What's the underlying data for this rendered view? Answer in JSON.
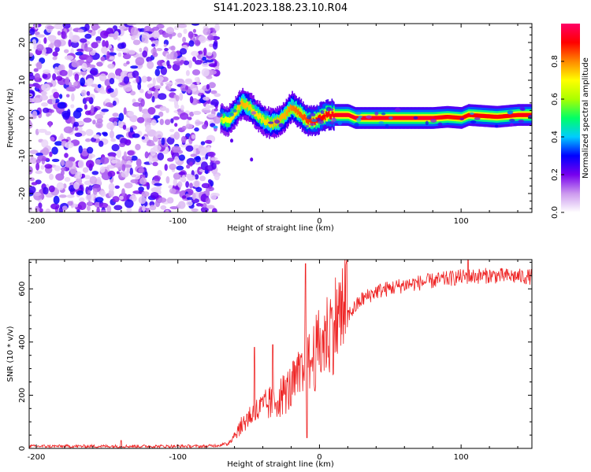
{
  "title": "S141.2023.188.23.10.R04",
  "chart_data": [
    {
      "type": "heatmap",
      "name": "spectrogram",
      "xlabel": "Height of straight line (km)",
      "ylabel": "Frequency (Hz)",
      "xlim": [
        -205,
        150
      ],
      "ylim": [
        -25,
        25
      ],
      "xticks": [
        -200,
        -100,
        0,
        100
      ],
      "xtick_labels": [
        "-200",
        "-100",
        "0",
        "100"
      ],
      "yticks": [
        -20,
        -10,
        0,
        10,
        20
      ],
      "ytick_labels": [
        "-20",
        "-10",
        "0",
        "10",
        "20"
      ],
      "noise_region_x": [
        -205,
        -72
      ],
      "signal_track": [
        {
          "x": -70,
          "f": 0.0,
          "amp": 0.35
        },
        {
          "x": -65,
          "f": -1.0,
          "amp": 0.45
        },
        {
          "x": -60,
          "f": 1.5,
          "amp": 0.5
        },
        {
          "x": -55,
          "f": 4.0,
          "amp": 0.6
        },
        {
          "x": -50,
          "f": 3.0,
          "amp": 0.55
        },
        {
          "x": -45,
          "f": 1.0,
          "amp": 0.5
        },
        {
          "x": -40,
          "f": -0.5,
          "amp": 0.5
        },
        {
          "x": -35,
          "f": -1.5,
          "amp": 0.55
        },
        {
          "x": -30,
          "f": -1.0,
          "amp": 0.6
        },
        {
          "x": -25,
          "f": 0.5,
          "amp": 0.6
        },
        {
          "x": -20,
          "f": 3.0,
          "amp": 0.7
        },
        {
          "x": -15,
          "f": 1.5,
          "amp": 0.75
        },
        {
          "x": -10,
          "f": -0.5,
          "amp": 0.8
        },
        {
          "x": -5,
          "f": -1.0,
          "amp": 0.85
        },
        {
          "x": 0,
          "f": 0.0,
          "amp": 0.9
        },
        {
          "x": 5,
          "f": 0.8,
          "amp": 0.95
        },
        {
          "x": 20,
          "f": 0.8,
          "amp": 1.0
        },
        {
          "x": 25,
          "f": 0.0,
          "amp": 1.0
        },
        {
          "x": 45,
          "f": 0.0,
          "amp": 1.0
        },
        {
          "x": 55,
          "f": 0.0,
          "amp": 1.0
        },
        {
          "x": 80,
          "f": 0.0,
          "amp": 1.0
        },
        {
          "x": 90,
          "f": 0.3,
          "amp": 0.9
        },
        {
          "x": 100,
          "f": 0.0,
          "amp": 0.9
        },
        {
          "x": 105,
          "f": 0.8,
          "amp": 0.95
        },
        {
          "x": 125,
          "f": 0.3,
          "amp": 0.9
        },
        {
          "x": 140,
          "f": 0.8,
          "amp": 0.95
        },
        {
          "x": 150,
          "f": 0.8,
          "amp": 0.95
        }
      ],
      "colorbar": {
        "label": "Normalized spectral amplitude",
        "range": [
          0,
          1
        ],
        "ticks": [
          0.0,
          0.2,
          0.4,
          0.6,
          0.8
        ],
        "tick_labels": [
          "0.0",
          "0.2",
          "0.4",
          "0.6",
          "0.8"
        ],
        "colors": [
          "#ffffff",
          "#cc99ee",
          "#7700ee",
          "#0000ff",
          "#00ccff",
          "#00ff66",
          "#aaff00",
          "#ffff00",
          "#ff8800",
          "#ff0000",
          "#ff0066"
        ]
      }
    },
    {
      "type": "line",
      "name": "snr",
      "xlabel": "Height of straight line (km)",
      "ylabel": "SNR (10 * v/v)",
      "xlim": [
        -205,
        150
      ],
      "ylim": [
        0,
        710
      ],
      "xticks": [
        -200,
        -100,
        0,
        100
      ],
      "xtick_labels": [
        "-200",
        "-100",
        "0",
        "100"
      ],
      "yticks": [
        0,
        200,
        400,
        600
      ],
      "ytick_labels": [
        "0",
        "200",
        "400",
        "600"
      ],
      "color": "#ee2222",
      "envelope": [
        {
          "x": -205,
          "y": 8
        },
        {
          "x": -140,
          "y": 8
        },
        {
          "x": -80,
          "y": 8
        },
        {
          "x": -65,
          "y": 15
        },
        {
          "x": -58,
          "y": 60
        },
        {
          "x": -50,
          "y": 110
        },
        {
          "x": -40,
          "y": 140
        },
        {
          "x": -30,
          "y": 170
        },
        {
          "x": -20,
          "y": 210
        },
        {
          "x": -10,
          "y": 270
        },
        {
          "x": 0,
          "y": 350
        },
        {
          "x": 10,
          "y": 430
        },
        {
          "x": 20,
          "y": 500
        },
        {
          "x": 30,
          "y": 560
        },
        {
          "x": 40,
          "y": 590
        },
        {
          "x": 60,
          "y": 615
        },
        {
          "x": 80,
          "y": 630
        },
        {
          "x": 100,
          "y": 645
        },
        {
          "x": 120,
          "y": 650
        },
        {
          "x": 150,
          "y": 645
        }
      ],
      "spikes": [
        {
          "x": -140,
          "y": 30
        },
        {
          "x": -46,
          "y": 380
        },
        {
          "x": -33,
          "y": 390
        },
        {
          "x": -10,
          "y": 695
        },
        {
          "x": -9,
          "y": 40
        },
        {
          "x": 105,
          "y": 710
        }
      ]
    }
  ]
}
